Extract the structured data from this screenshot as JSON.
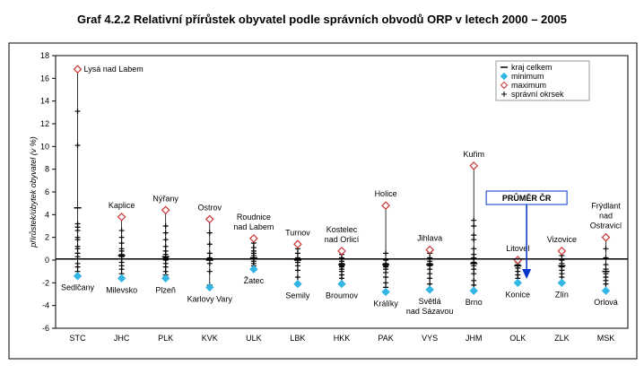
{
  "chart_data": {
    "type": "range-dot",
    "title": "Graf 4.2.2 Relativní přírůstek obyvatel podle správních obvodů ORP v letech 2000 – 2005",
    "y_label": "přírůstek/úbytek obyvatel (v %)",
    "categories": [
      "STC",
      "JHC",
      "PLK",
      "KVK",
      "ULK",
      "LBK",
      "HKK",
      "PAK",
      "VYS",
      "JHM",
      "OLK",
      "ZLK",
      "MSK"
    ],
    "ylim": [
      -6,
      18
    ],
    "yticks": [
      -6,
      -4,
      -2,
      0,
      2,
      4,
      6,
      8,
      10,
      12,
      14,
      16,
      18
    ],
    "reference": {
      "label": "PRŮMĚR ČR",
      "value": 0.1,
      "color": "#0033cc"
    },
    "series": [
      {
        "name": "kraj celkem",
        "color": "#000000",
        "marker": "dash",
        "values": [
          4.6,
          0.4,
          0.3,
          0.0,
          0.2,
          0.0,
          -0.4,
          -0.4,
          -0.4,
          -0.3,
          -0.5,
          -0.5,
          -1.0
        ]
      },
      {
        "name": "minimum",
        "color": "#33b5e5",
        "marker": "diamond",
        "values": [
          -1.4,
          -1.6,
          -1.6,
          -2.4,
          -0.8,
          -2.1,
          -2.1,
          -2.8,
          -2.6,
          -2.7,
          -2.0,
          -2.0,
          -2.7
        ],
        "point_labels": [
          [
            "Sedlčany"
          ],
          [
            "Milevsko"
          ],
          [
            "Plzeň"
          ],
          [
            "Karlovy Vary"
          ],
          [
            "Žatec"
          ],
          [
            "Semily"
          ],
          [
            "Broumov"
          ],
          [
            "Králíky"
          ],
          [
            "Světlá",
            "nad Sázavou"
          ],
          [
            "Brno"
          ],
          [
            "Konice"
          ],
          [
            "Zlín"
          ],
          [
            "Orlová"
          ]
        ]
      },
      {
        "name": "maximum",
        "color": "#cc3333",
        "marker": "diamond-open",
        "values": [
          16.8,
          3.8,
          4.4,
          3.6,
          1.9,
          1.4,
          0.8,
          4.8,
          0.9,
          8.3,
          0.0,
          0.8,
          2.0
        ],
        "point_labels": [
          [
            "Lysá nad Labem"
          ],
          [
            "Kaplice"
          ],
          [
            "Nýřany"
          ],
          [
            "Ostrov"
          ],
          [
            "Roudnice",
            "nad Labem"
          ],
          [
            "Turnov"
          ],
          [
            "Kostelec",
            "nad Orlicí"
          ],
          [
            "Holice"
          ],
          [
            "Jihlava"
          ],
          [
            "Kuřim"
          ],
          [
            "Litovel"
          ],
          [
            "Vizovice"
          ],
          [
            "Frýdlant",
            "nad",
            "Ostravicí"
          ]
        ]
      },
      {
        "name": "správní okrsek",
        "color": "#000000",
        "marker": "plus",
        "values": [
          [
            13.1,
            10.1,
            3.2,
            2.9,
            2.6,
            2.0,
            1.8,
            1.2,
            1.0,
            0.6,
            0.3,
            -0.3,
            -0.6,
            -1.0
          ],
          [
            2.6,
            2.0,
            1.5,
            1.0,
            0.8,
            0.5,
            0.3,
            0.1,
            -0.2,
            -0.5,
            -0.8,
            -1.2
          ],
          [
            3.0,
            2.4,
            1.8,
            1.2,
            0.8,
            0.5,
            0.2,
            0.0,
            -0.3,
            -0.6,
            -1.0,
            -1.3
          ],
          [
            2.4,
            1.4,
            0.6,
            0.2,
            -0.3,
            -1.0,
            -2.2
          ],
          [
            1.5,
            1.1,
            0.8,
            0.6,
            0.4,
            0.1,
            -0.1,
            -0.3,
            -0.5
          ],
          [
            1.0,
            0.6,
            0.2,
            -0.2,
            -0.5,
            -0.9,
            -1.5
          ],
          [
            0.5,
            0.2,
            -0.1,
            -0.3,
            -0.5,
            -0.6,
            -0.8,
            -1.0,
            -1.3,
            -1.6
          ],
          [
            0.6,
            0.0,
            -0.3,
            -0.5,
            -0.6,
            -0.8,
            -1.1,
            -1.5,
            -2.0,
            -2.4
          ],
          [
            0.6,
            0.2,
            -0.1,
            -0.3,
            -0.5,
            -0.8,
            -1.2,
            -1.6,
            -2.1
          ],
          [
            3.5,
            3.0,
            2.2,
            1.8,
            1.0,
            0.5,
            0.2,
            -0.2,
            -0.5,
            -0.8,
            -1.2,
            -1.8,
            -2.2
          ],
          [
            -0.2,
            -0.4,
            -0.7,
            -1.0,
            -1.3,
            -1.6
          ],
          [
            0.4,
            0.0,
            -0.3,
            -0.6,
            -0.9,
            -1.2,
            -1.5
          ],
          [
            1.0,
            0.2,
            -0.4,
            -0.8,
            -1.2,
            -1.5,
            -1.8,
            -2.1
          ]
        ]
      }
    ]
  }
}
